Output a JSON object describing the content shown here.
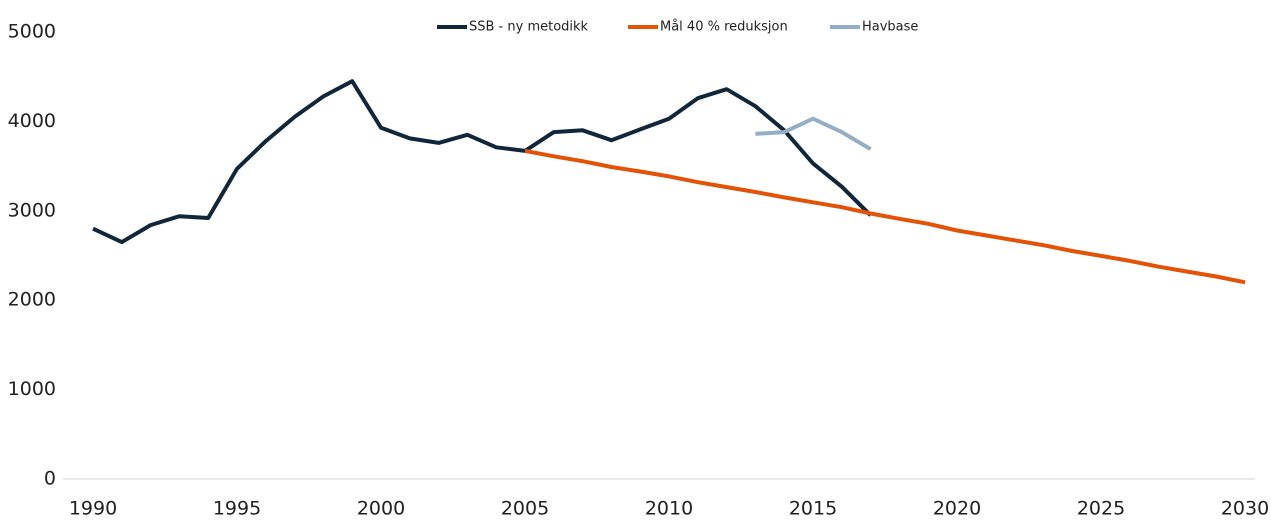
{
  "chart_data": {
    "type": "line",
    "x": [
      1990,
      1991,
      1992,
      1993,
      1994,
      1995,
      1996,
      1997,
      1998,
      1999,
      2000,
      2001,
      2002,
      2003,
      2004,
      2005,
      2006,
      2007,
      2008,
      2009,
      2010,
      2011,
      2012,
      2013,
      2014,
      2015,
      2016,
      2017,
      2018,
      2019,
      2020,
      2021,
      2022,
      2023,
      2024,
      2025,
      2026,
      2027,
      2028,
      2029,
      2030
    ],
    "series": [
      {
        "name": "SSB - ny metodikk",
        "color": "#12263a",
        "values": [
          2800,
          2650,
          2840,
          2940,
          2920,
          3470,
          3780,
          4050,
          4280,
          4450,
          3930,
          3810,
          3760,
          3850,
          3710,
          3670,
          3880,
          3900,
          3790,
          3910,
          4030,
          4260,
          4360,
          4170,
          3900,
          3530,
          3270,
          2950,
          null,
          null,
          null,
          null,
          null,
          null,
          null,
          null,
          null,
          null,
          null,
          null,
          null
        ]
      },
      {
        "name": "Mål 40 % reduksjon",
        "color": "#e35205",
        "values": [
          null,
          null,
          null,
          null,
          null,
          null,
          null,
          null,
          null,
          null,
          null,
          null,
          null,
          null,
          null,
          3670,
          3610,
          3555,
          3490,
          3440,
          3385,
          3320,
          3265,
          3210,
          3150,
          3095,
          3040,
          2970,
          2910,
          2855,
          2780,
          2725,
          2670,
          2615,
          2550,
          2495,
          2440,
          2375,
          2320,
          2265,
          2200
        ]
      },
      {
        "name": "Havbase",
        "color": "#94aec4",
        "values": [
          null,
          null,
          null,
          null,
          null,
          null,
          null,
          null,
          null,
          null,
          null,
          null,
          null,
          null,
          null,
          null,
          null,
          null,
          null,
          null,
          null,
          null,
          null,
          3860,
          3880,
          4030,
          3880,
          3690,
          null,
          null,
          null,
          null,
          null,
          null,
          null,
          null,
          null,
          null,
          null,
          null,
          null
        ]
      }
    ],
    "xlim": [
      1990,
      2030
    ],
    "xticks": [
      1990,
      1995,
      2000,
      2005,
      2010,
      2015,
      2020,
      2025,
      2030
    ],
    "ylim": [
      0,
      5000
    ],
    "yticks": [
      0,
      1000,
      2000,
      3000,
      4000,
      5000
    ],
    "grid": false,
    "legend": "top"
  }
}
